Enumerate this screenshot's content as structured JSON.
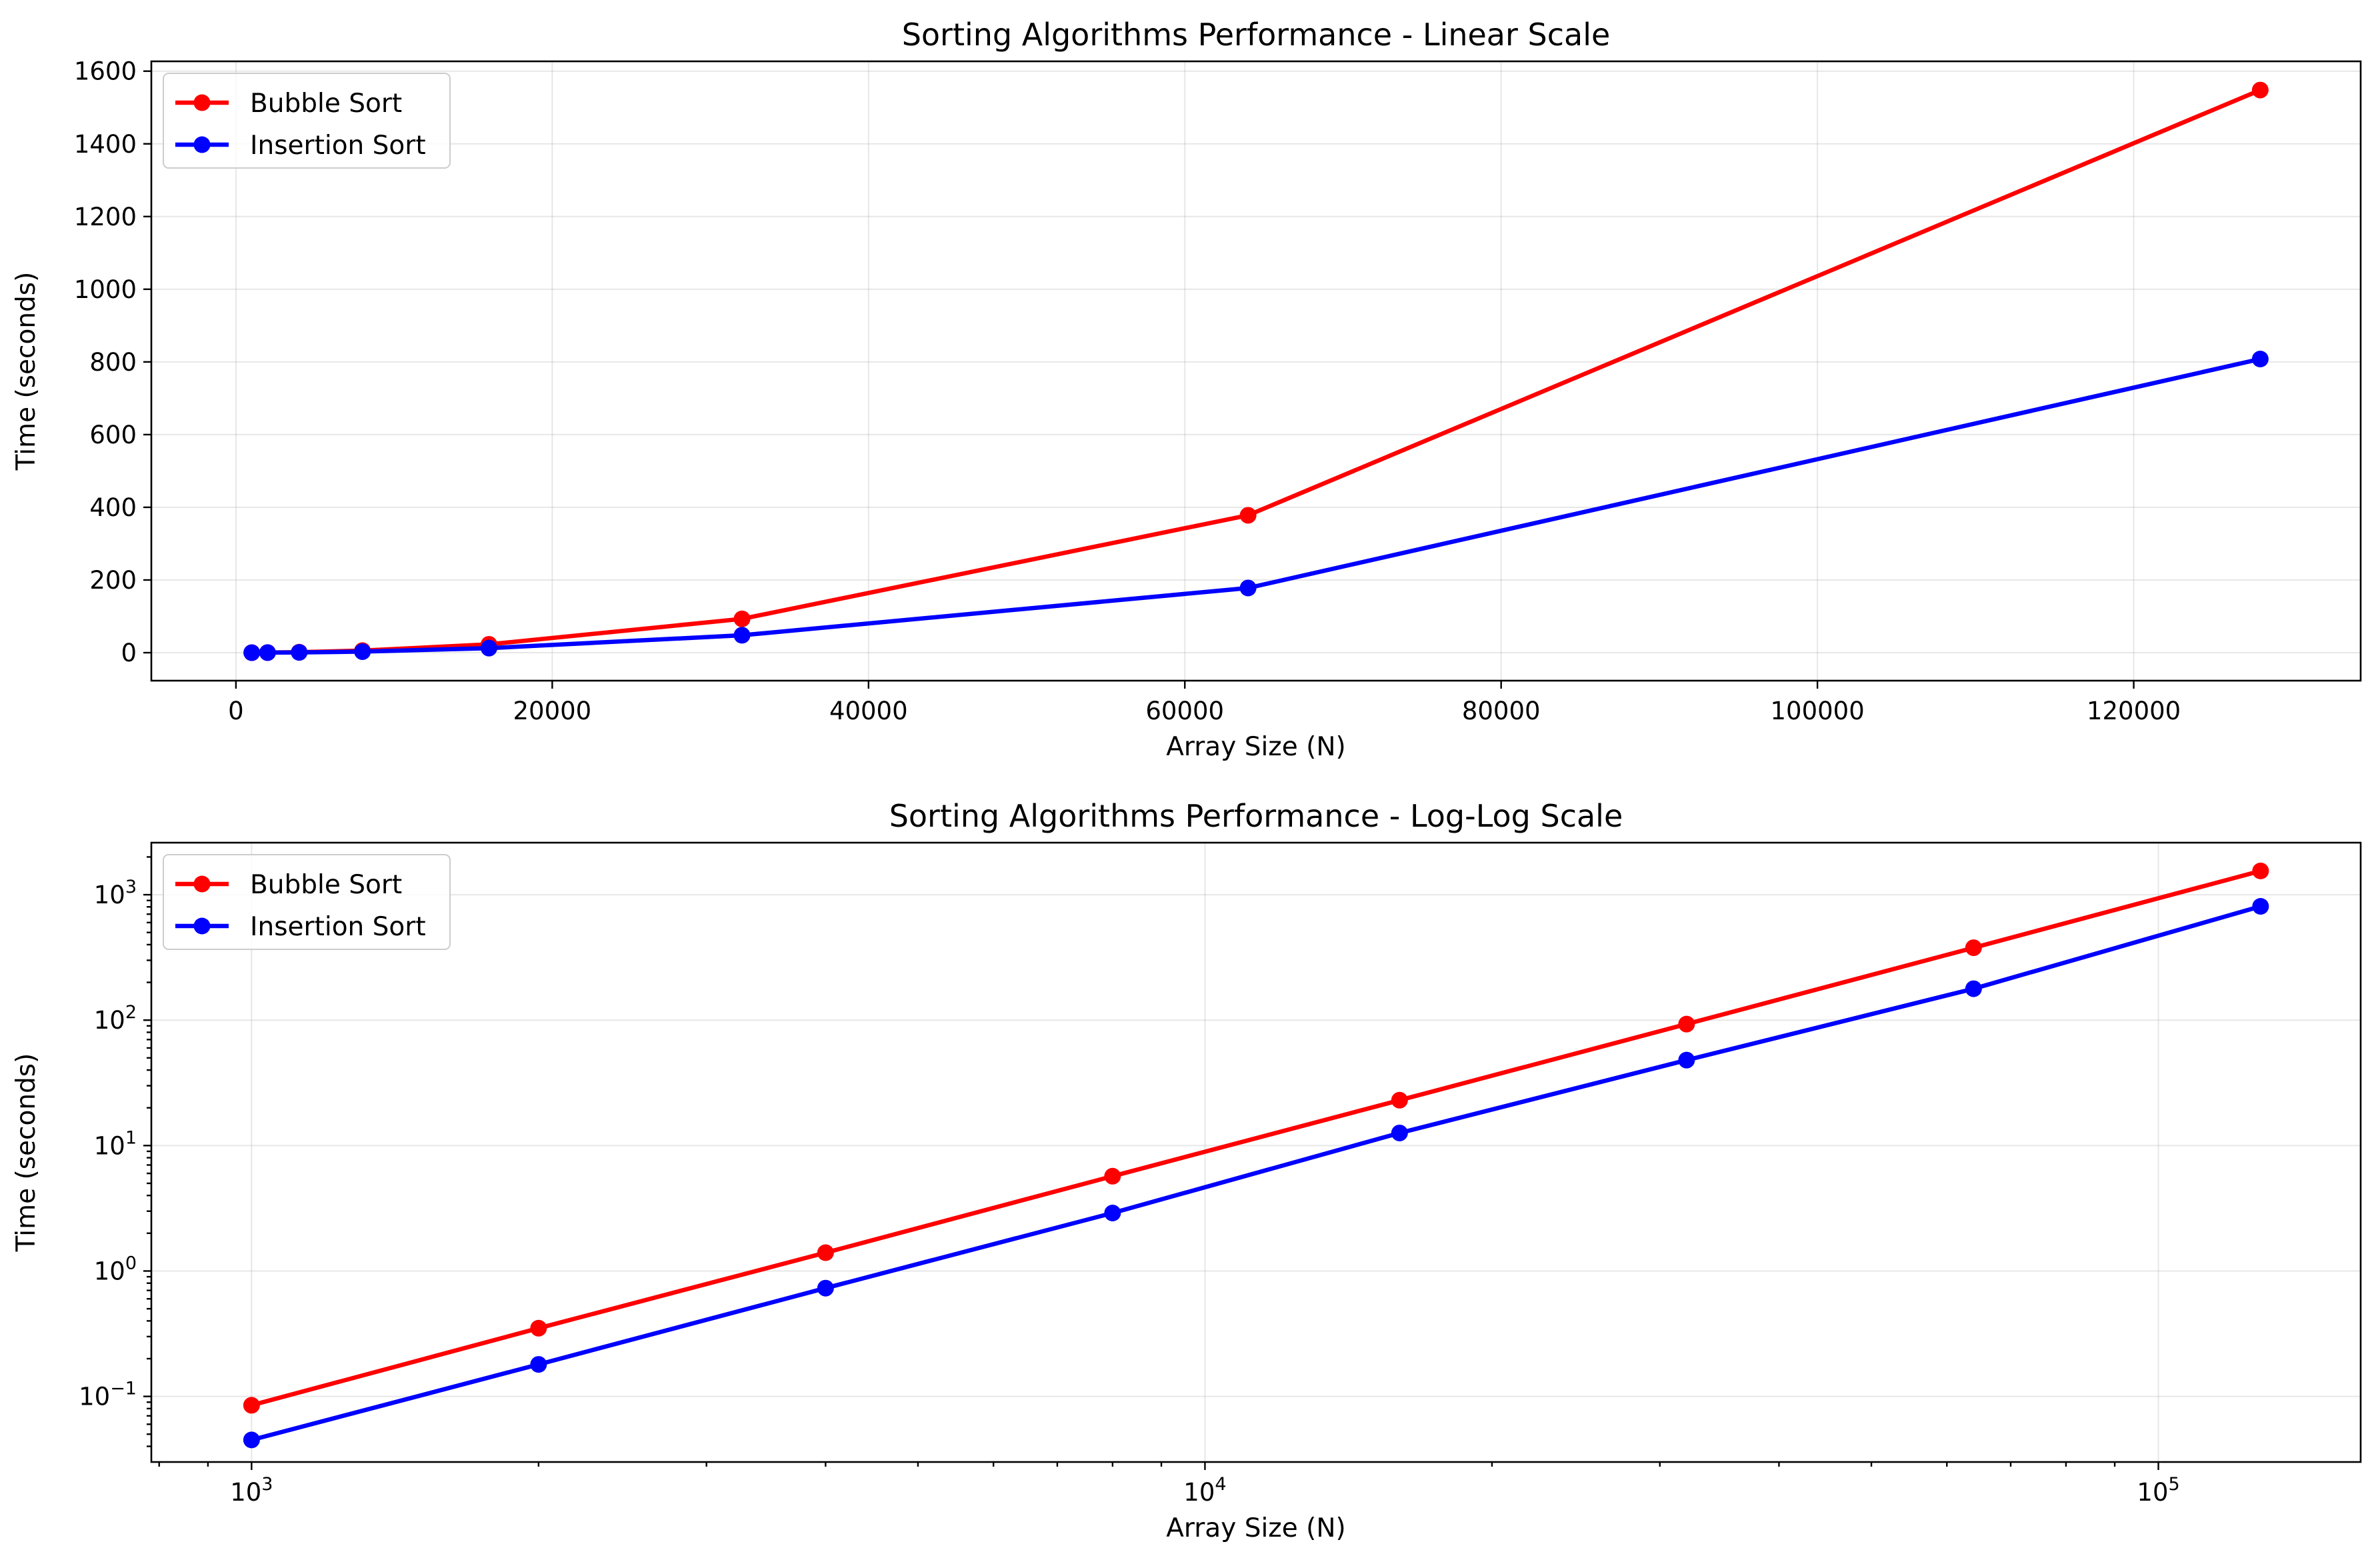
{
  "chart_data": [
    {
      "type": "line",
      "title": "Sorting Algorithms Performance - Linear Scale",
      "xlabel": "Array Size (N)",
      "ylabel": "Time (seconds)",
      "xscale": "linear",
      "yscale": "linear",
      "xlim": [
        -5350,
        134350
      ],
      "ylim": [
        -77,
        1627
      ],
      "xticks": [
        0,
        20000,
        40000,
        60000,
        80000,
        100000,
        120000
      ],
      "xtick_labels": [
        "0",
        "20000",
        "40000",
        "60000",
        "80000",
        "100000",
        "120000"
      ],
      "yticks": [
        0,
        200,
        400,
        600,
        800,
        1000,
        1200,
        1400,
        1600
      ],
      "ytick_labels": [
        "0",
        "200",
        "400",
        "600",
        "800",
        "1000",
        "1200",
        "1400",
        "1600"
      ],
      "grid": true,
      "legend_position": "upper-left",
      "x": [
        1000,
        2000,
        4000,
        8000,
        16000,
        32000,
        64000,
        128000
      ],
      "series": [
        {
          "name": "Bubble Sort",
          "color": "#ff0000",
          "values": [
            0.085,
            0.35,
            1.4,
            5.7,
            23,
            93,
            378,
            1548
          ]
        },
        {
          "name": "Insertion Sort",
          "color": "#0000ff",
          "values": [
            0.045,
            0.18,
            0.73,
            2.9,
            12.6,
            48,
            178,
            808
          ]
        }
      ]
    },
    {
      "type": "line",
      "title": "Sorting Algorithms Performance - Log-Log Scale",
      "xlabel": "Array Size (N)",
      "ylabel": "Time (seconds)",
      "xscale": "log",
      "yscale": "log",
      "xlim": [
        785,
        163000
      ],
      "ylim": [
        0.03,
        2600
      ],
      "xticks": [
        1000,
        10000,
        100000
      ],
      "xtick_labels": [
        {
          "base": "10",
          "exp": "3"
        },
        {
          "base": "10",
          "exp": "4"
        },
        {
          "base": "10",
          "exp": "5"
        }
      ],
      "yticks": [
        0.1,
        1,
        10,
        100,
        1000
      ],
      "ytick_labels": [
        {
          "base": "10",
          "exp": "−1"
        },
        {
          "base": "10",
          "exp": "0"
        },
        {
          "base": "10",
          "exp": "1"
        },
        {
          "base": "10",
          "exp": "2"
        },
        {
          "base": "10",
          "exp": "3"
        }
      ],
      "grid": true,
      "legend_position": "upper-left",
      "x": [
        1000,
        2000,
        4000,
        8000,
        16000,
        32000,
        64000,
        128000
      ],
      "series": [
        {
          "name": "Bubble Sort",
          "color": "#ff0000",
          "values": [
            0.085,
            0.35,
            1.4,
            5.7,
            23,
            93,
            378,
            1548
          ]
        },
        {
          "name": "Insertion Sort",
          "color": "#0000ff",
          "values": [
            0.045,
            0.18,
            0.73,
            2.9,
            12.6,
            48,
            178,
            808
          ]
        }
      ]
    }
  ]
}
